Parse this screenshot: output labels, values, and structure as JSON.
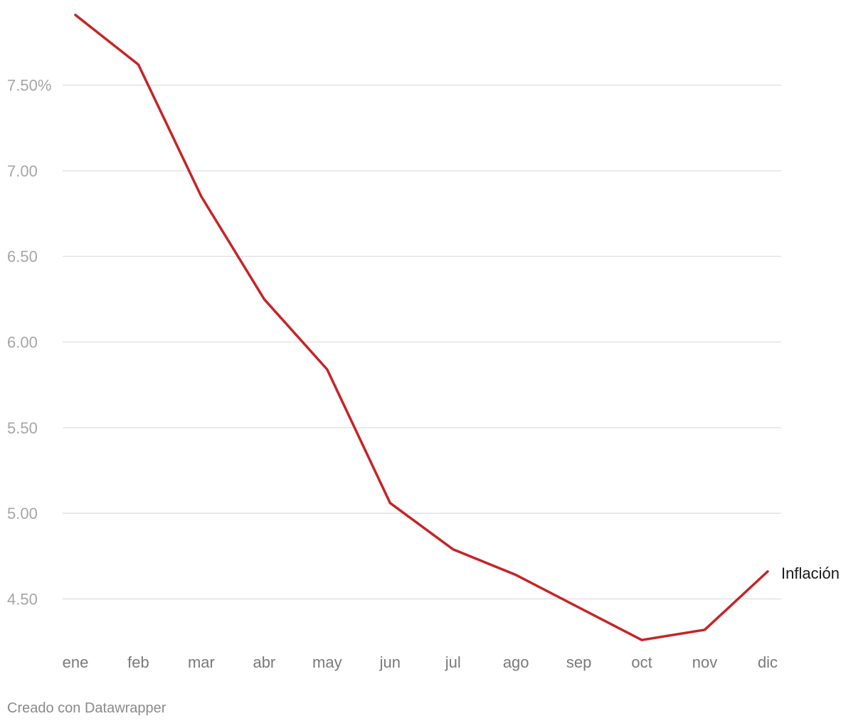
{
  "chart_data": {
    "type": "line",
    "categories": [
      "ene",
      "feb",
      "mar",
      "abr",
      "may",
      "jun",
      "jul",
      "ago",
      "sep",
      "oct",
      "nov",
      "dic"
    ],
    "series": [
      {
        "name": "Inflación",
        "color": "#c62326",
        "values": [
          7.91,
          7.62,
          6.85,
          6.25,
          5.84,
          5.06,
          4.79,
          4.64,
          4.45,
          4.26,
          4.32,
          4.66
        ]
      }
    ],
    "yticks": [
      4.5,
      5.0,
      5.5,
      6.0,
      6.5,
      7.0,
      7.5
    ],
    "ytick_labels": [
      "4.50",
      "5.00",
      "5.50",
      "6.00",
      "6.50",
      "7.00",
      "7.50%"
    ],
    "ylim": [
      4.24,
      7.91
    ],
    "grid": true,
    "title": "",
    "xlabel": "",
    "ylabel": ""
  },
  "credit": "Creado con Datawrapper"
}
